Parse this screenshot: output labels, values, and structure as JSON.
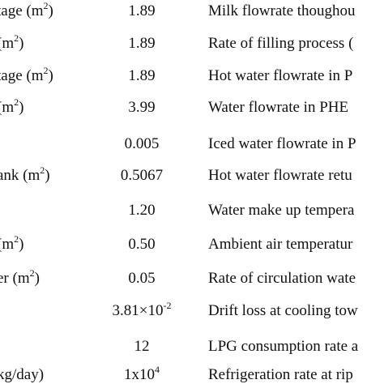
{
  "table": {
    "rows": [
      {
        "col1": "tage (m",
        "col1_sup": "2",
        "col1_tail": ")",
        "col2": "1.89",
        "col2_sup": "",
        "col3": "Milk flowrate thoughou"
      },
      {
        "col1": " (m",
        "col1_sup": "2",
        "col1_tail": ")",
        "col2": "1.89",
        "col2_sup": "",
        "col3": "Rate of filling process ("
      },
      {
        "col1": "tage (m",
        "col1_sup": "2",
        "col1_tail": ")",
        "col2": "1.89",
        "col2_sup": "",
        "col3": "Hot water flowrate in P"
      },
      {
        "col1": " (m",
        "col1_sup": "2",
        "col1_tail": ")",
        "col2": "3.99",
        "col2_sup": "",
        "col3": "Water flowrate in PHE"
      },
      {
        "col1": "",
        "col1_sup": "",
        "col1_tail": "",
        "col2": "0.005",
        "col2_sup": "",
        "col3": "Iced water flowrate in P"
      },
      {
        "col1": "ank (m",
        "col1_sup": "2",
        "col1_tail": ")",
        "col2": "0.5067",
        "col2_sup": "",
        "col3": "Hot water flowrate retu"
      },
      {
        "col1": "",
        "col1_sup": "",
        "col1_tail": "",
        "col2": "1.20",
        "col2_sup": "",
        "col3": "Water make up tempera"
      },
      {
        "col1": "(m",
        "col1_sup": "2",
        "col1_tail": ")",
        "col2": "0.50",
        "col2_sup": "",
        "col3": "Ambient air temperatur"
      },
      {
        "col1": "er (m",
        "col1_sup": "2",
        "col1_tail": ")",
        "col2": "0.05",
        "col2_sup": "",
        "col3": "Rate of circulation wate"
      },
      {
        "col1": "",
        "col1_sup": "",
        "col1_tail": "",
        "col2": "3.81×10",
        "col2_sup": "-2",
        "col3": "Drift loss at cooling tow"
      },
      {
        "col1": "",
        "col1_sup": "",
        "col1_tail": "",
        "col2": "12",
        "col2_sup": "",
        "col3": "LPG consumption rate a"
      },
      {
        "col1": "kg/day)",
        "col1_sup": "",
        "col1_tail": "",
        "col2": "1x10",
        "col2_sup": "4",
        "col3": "Refrigeration rate at rip"
      }
    ]
  }
}
